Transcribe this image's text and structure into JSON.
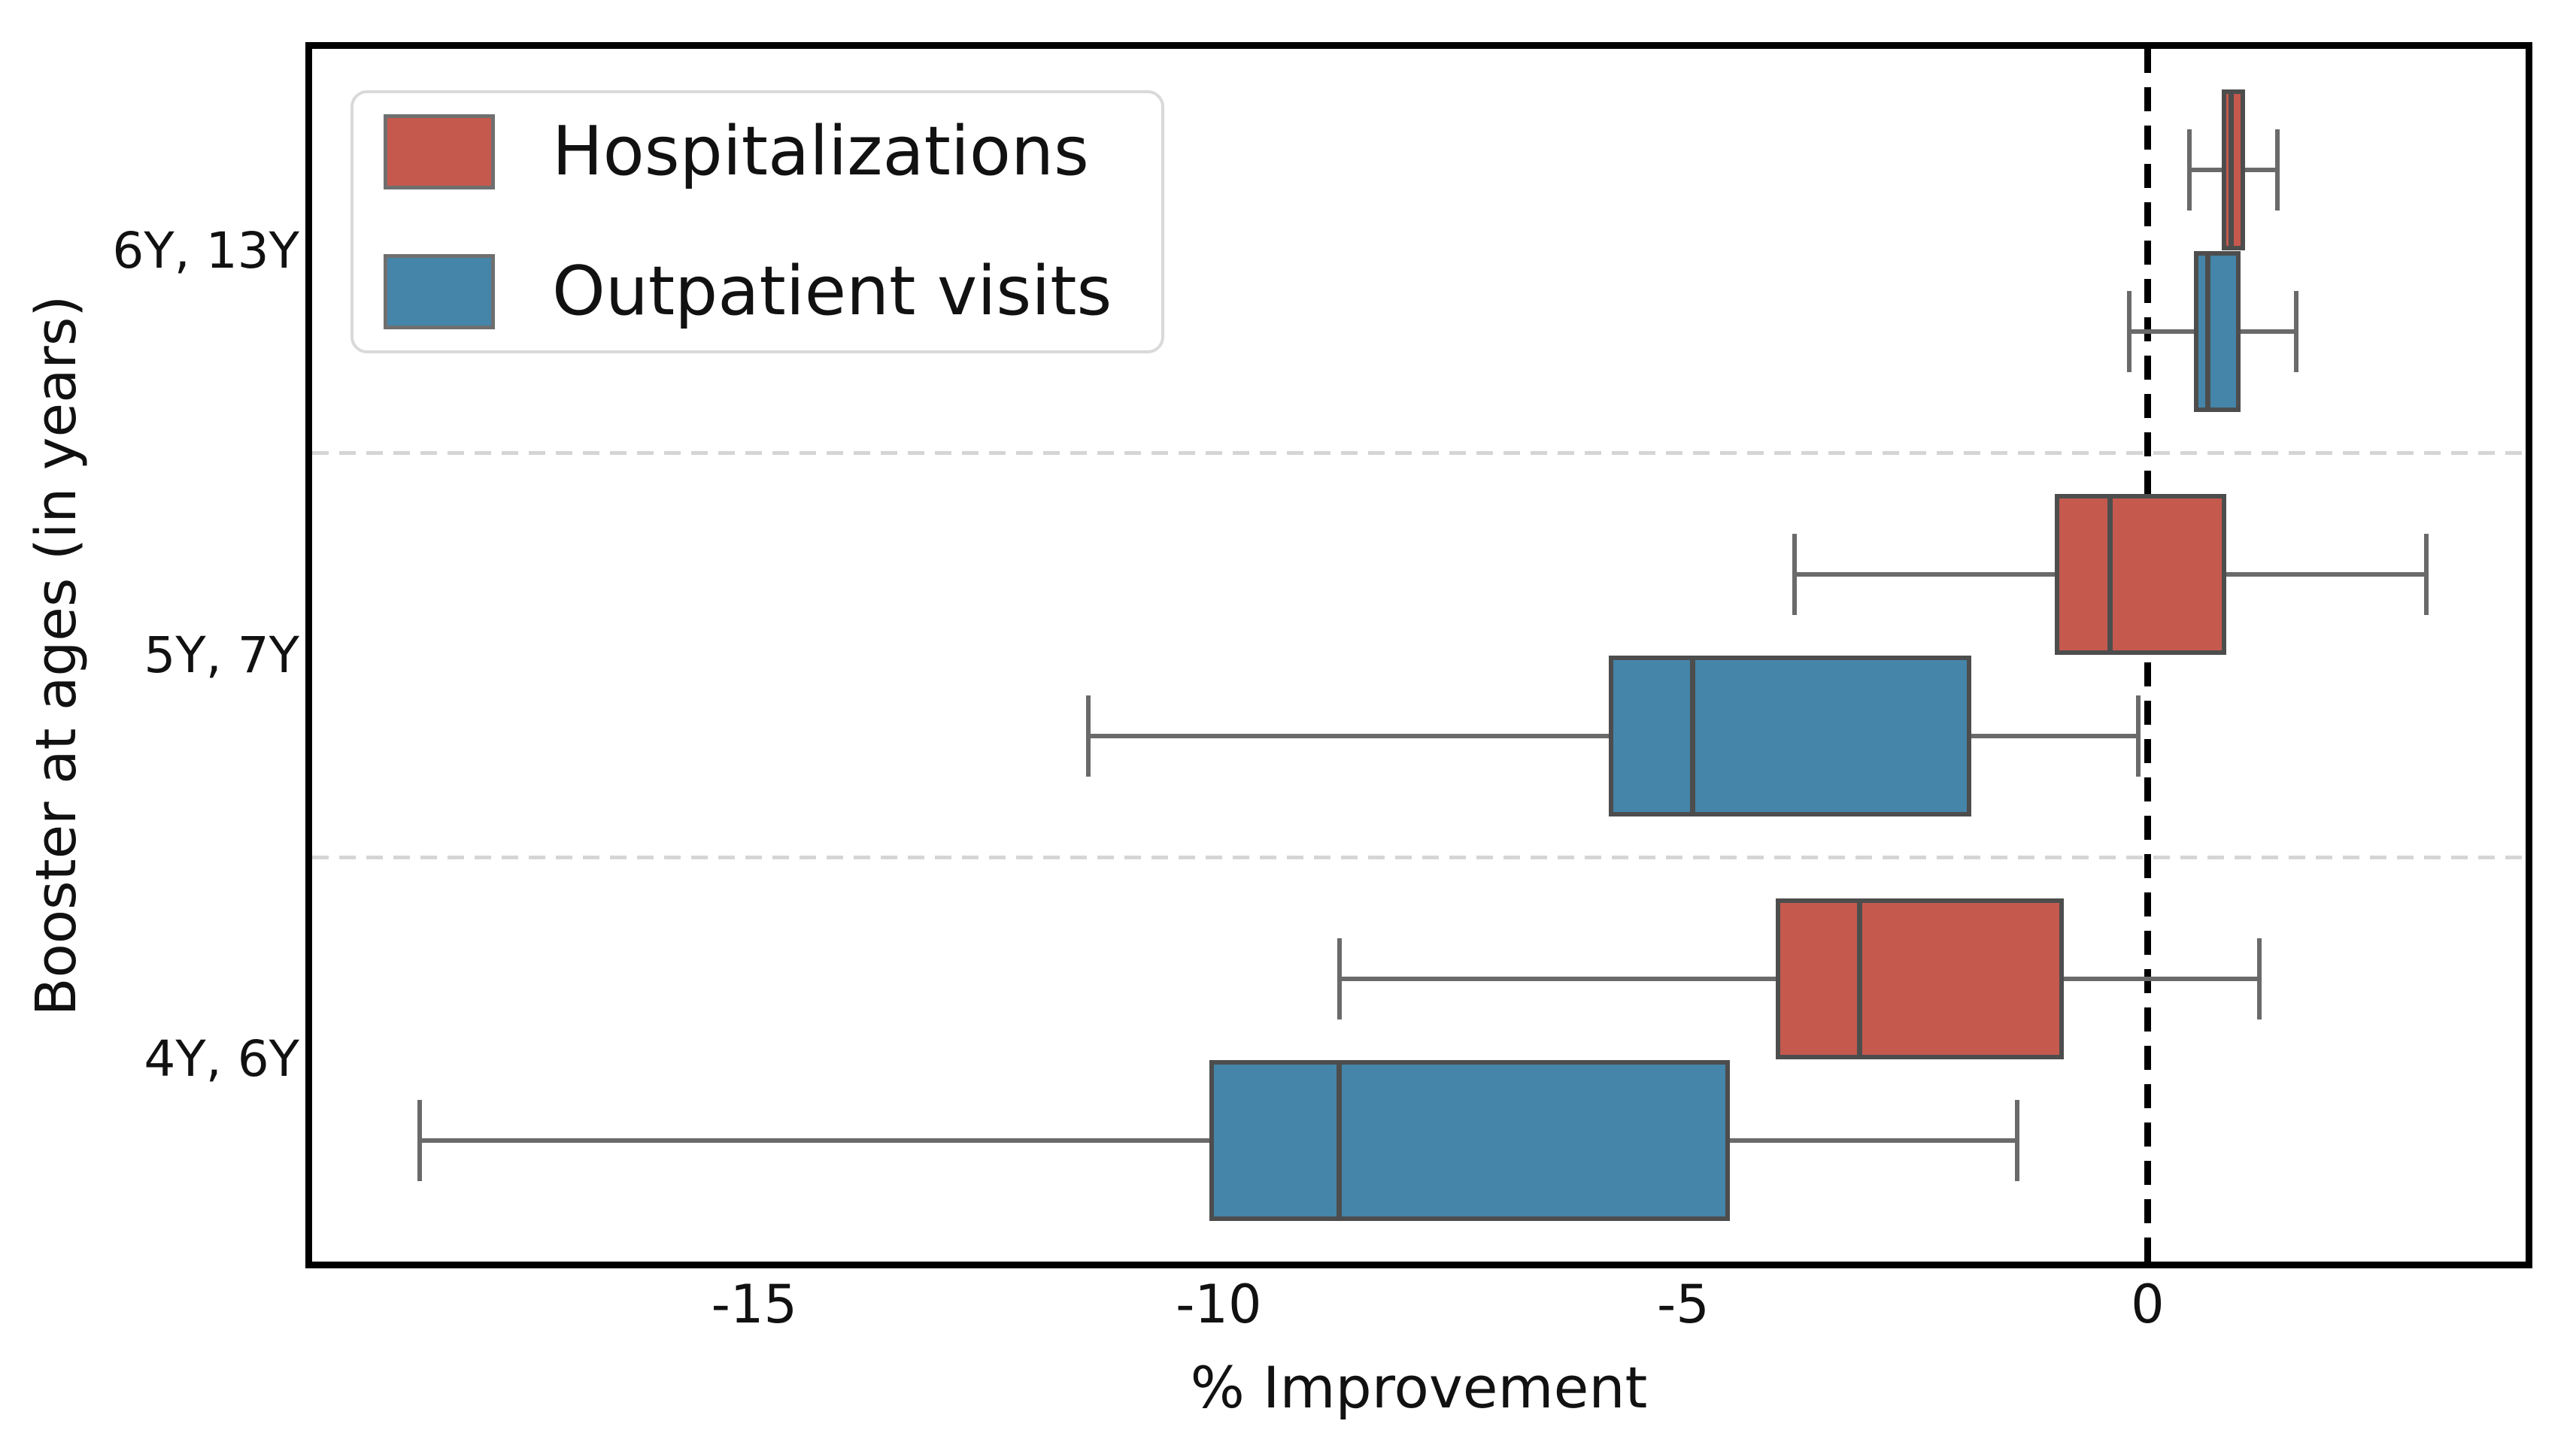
{
  "chart_data": {
    "type": "boxplot",
    "orientation": "horizontal",
    "title": "",
    "xlabel": "% Improvement",
    "ylabel": "Booster at ages (in years)",
    "xlim": [
      -19.76,
      4.07
    ],
    "xticks": [
      -15,
      -10,
      -5,
      0
    ],
    "xtick_labels": [
      "-15",
      "-10",
      "-5",
      "0"
    ],
    "categories": [
      "6Y, 13Y",
      "5Y, 7Y",
      "4Y, 6Y"
    ],
    "grid": "dashed horizontal separators between category bands",
    "reference_line_x": 0,
    "legend_position": "upper left",
    "legend": [
      {
        "label": "Hospitalizations",
        "color": "#c5594d"
      },
      {
        "label": "Outpatient visits",
        "color": "#4585a9"
      }
    ],
    "series": [
      {
        "name": "Hospitalizations",
        "color": "#c5594d",
        "boxes": [
          {
            "category": "6Y, 13Y",
            "whislo": 0.45,
            "q1": 0.8,
            "median": 0.9,
            "q3": 1.05,
            "whishi": 1.4
          },
          {
            "category": "5Y, 7Y",
            "whislo": -3.8,
            "q1": -1.0,
            "median": -0.4,
            "q3": 0.85,
            "whishi": 3.0
          },
          {
            "category": "4Y, 6Y",
            "whislo": -8.7,
            "q1": -4.0,
            "median": -3.1,
            "q3": -0.9,
            "whishi": 1.2
          }
        ]
      },
      {
        "name": "Outpatient visits",
        "color": "#4585a9",
        "boxes": [
          {
            "category": "6Y, 13Y",
            "whislo": -0.2,
            "q1": 0.5,
            "median": 0.65,
            "q3": 1.0,
            "whishi": 1.6
          },
          {
            "category": "5Y, 7Y",
            "whislo": -11.4,
            "q1": -5.8,
            "median": -4.9,
            "q3": -1.9,
            "whishi": -0.1
          },
          {
            "category": "4Y, 6Y",
            "whislo": -18.6,
            "q1": -10.1,
            "median": -8.7,
            "q3": -4.5,
            "whishi": -1.4
          }
        ]
      }
    ],
    "colors": {
      "hospitalizations_fill": "#c5594d",
      "outpatient_fill": "#4585a9",
      "box_edge": "#4d4d4d",
      "median_line": "#4d4d4d",
      "whisker": "#6a6a6a",
      "gridline": "#d5d5d5",
      "reference_line": "#000000",
      "spine": "#000000",
      "legend_border": "#d9d9d9",
      "text": "#111111",
      "background": "#ffffff"
    }
  }
}
